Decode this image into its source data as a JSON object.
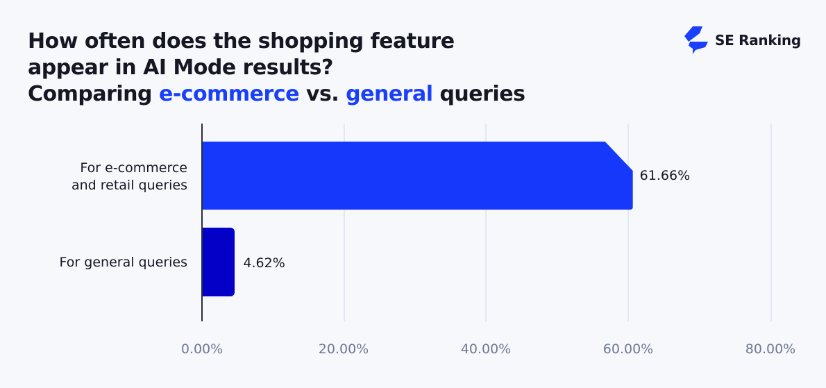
{
  "header": {
    "title_line1": "How often does the shopping feature",
    "title_line2": "appear in AI Mode results?",
    "title_line3_pre": "Comparing ",
    "title_line3_hl1": "e-commerce",
    "title_line3_mid": " vs. ",
    "title_line3_hl2": "general",
    "title_line3_post": " queries",
    "highlight_color": "#1a3ffb"
  },
  "brand": {
    "name": "SE Ranking",
    "icon": "se-ranking-logo-icon",
    "color": "#1a3ffb"
  },
  "chart_data": {
    "type": "bar",
    "orientation": "horizontal",
    "title": "How often does the shopping feature appear in AI Mode results? Comparing e-commerce vs. general queries",
    "categories": [
      "For e-commerce and retail queries",
      "For general queries"
    ],
    "values": [
      61.66,
      4.62
    ],
    "value_labels": [
      "61.66%",
      "4.62%"
    ],
    "colors": [
      "#1638fb",
      "#0400c8"
    ],
    "xlabel": "",
    "ylabel": "",
    "xlim": [
      0,
      80
    ],
    "xticks": [
      "0.00%",
      "20.00%",
      "40.00%",
      "60.00%",
      "80.00%"
    ],
    "grid": true,
    "legend": false
  },
  "categories": {
    "c1_line1": "For e-commerce",
    "c1_line2": "and retail queries",
    "c2": "For general queries"
  },
  "values": {
    "v1": "61.66%",
    "v2": "4.62%"
  },
  "ticks": {
    "t0": "0.00%",
    "t1": "20.00%",
    "t2": "40.00%",
    "t3": "60.00%",
    "t4": "80.00%"
  }
}
